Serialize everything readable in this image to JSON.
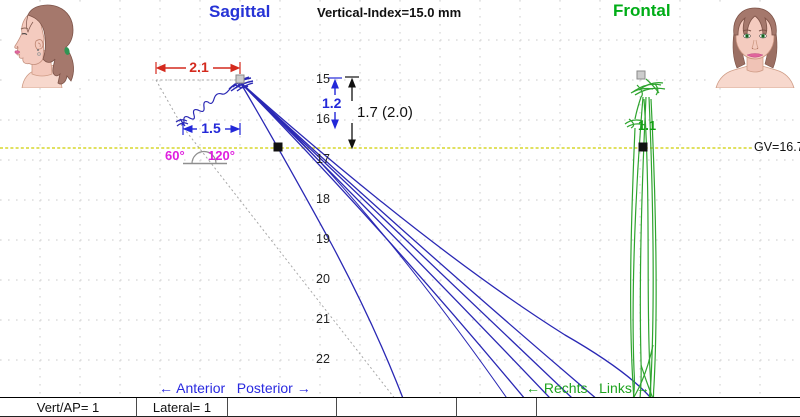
{
  "view": {
    "sagittal_title": "Sagittal",
    "frontal_title": "Frontal",
    "vertical_index": "Vertical-Index=15.0 mm"
  },
  "sagittal": {
    "width_measurement": "2.1",
    "retrusion_measurement": "1.5",
    "vertical_measurement": "1.2",
    "combined_measurement": "1.7 (2.0)",
    "angle_left": "60°",
    "angle_right": "120°",
    "scale_ticks": [
      "15",
      "16",
      "17",
      "18",
      "19",
      "20",
      "21",
      "22"
    ],
    "axis_label": "← Anterior   Posterior →"
  },
  "frontal": {
    "lateral_measurement": "1.1",
    "axis_label": "← Rechts   Links →"
  },
  "reference": {
    "gv_label": "GV=16.7"
  },
  "status_bar": {
    "cells": [
      "Vert/AP= 1",
      "Lateral= 1",
      "",
      "",
      "",
      ""
    ]
  },
  "colors": {
    "sagittal_accent": "#2633d6",
    "trace_blue": "#2a28b4",
    "frontal_accent": "#00ad17",
    "trace_green": "#2ea42e",
    "dimension_red": "#d42a1e",
    "angle_magenta": "#df1fdf",
    "reference_yellow": "#cfcf00"
  },
  "illustrations": {
    "left": "female-head-profile",
    "right": "female-head-frontal"
  }
}
